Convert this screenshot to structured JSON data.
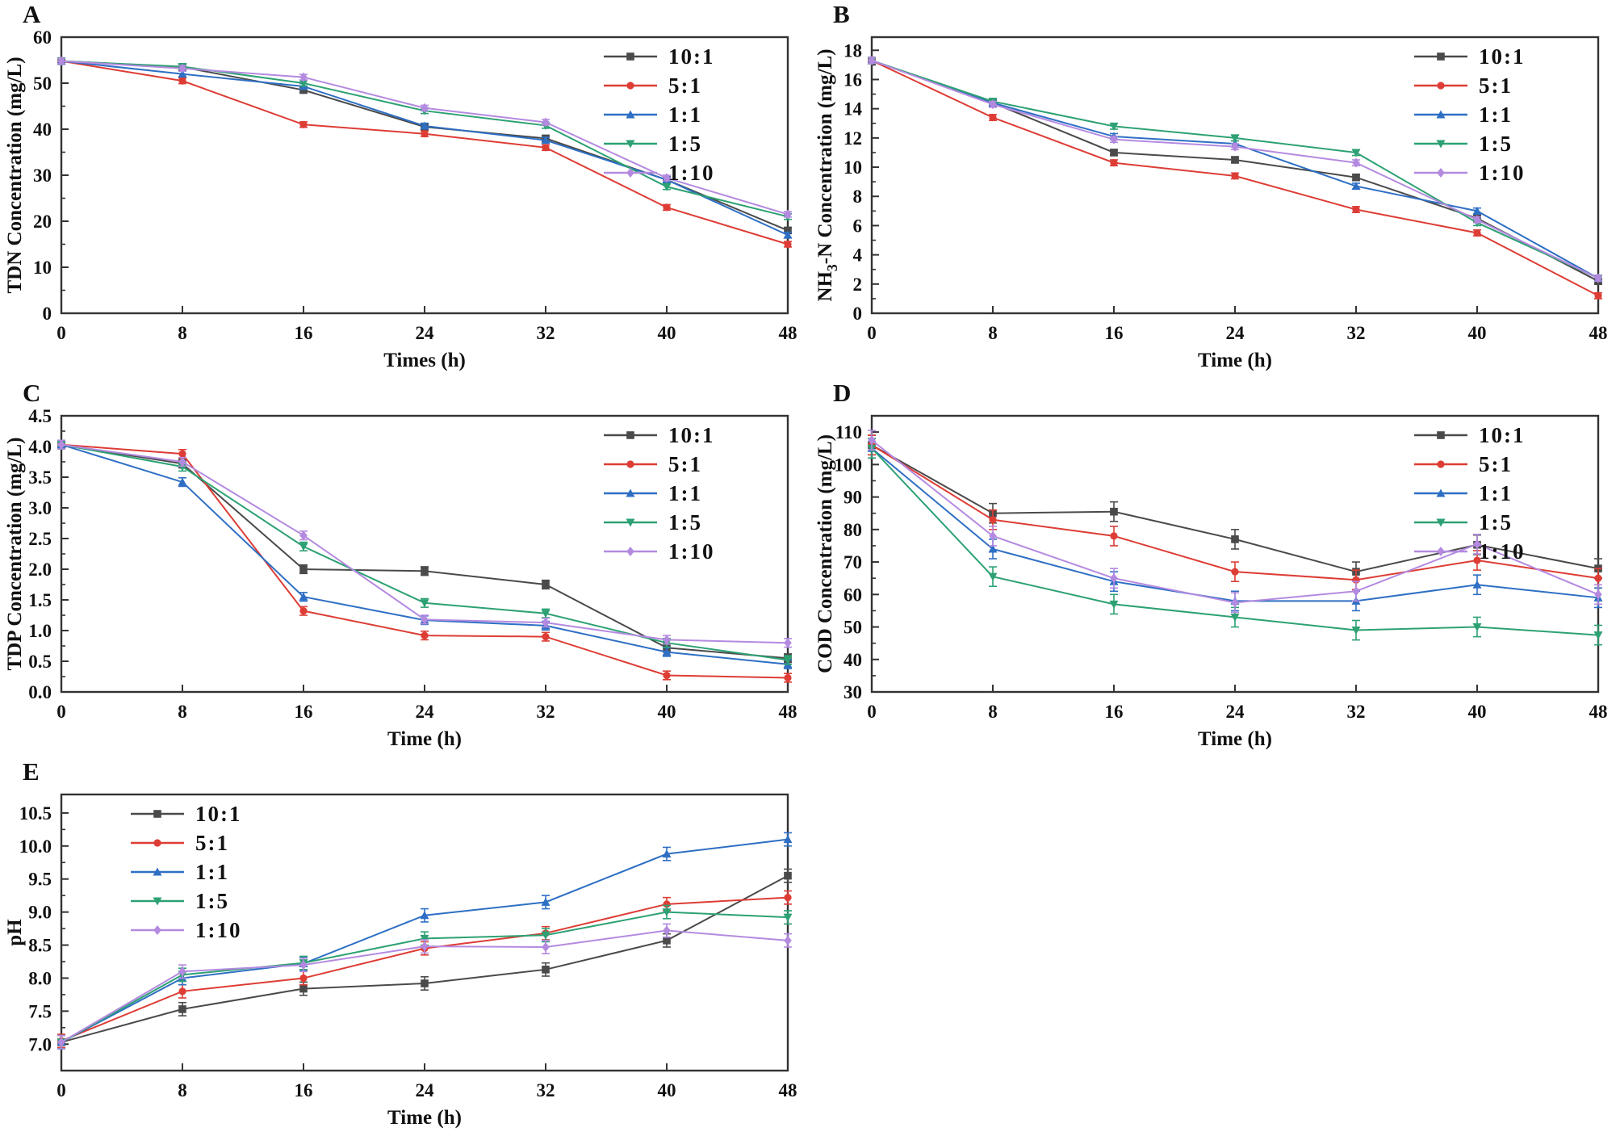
{
  "figure": {
    "description": "Five line charts (A-E) of water treatment ratios over time",
    "ratios": [
      "10:1",
      "5:1",
      "1:1",
      "1:5",
      "1:10"
    ]
  },
  "chart_data": [
    {
      "panel": "A",
      "type": "line",
      "xlabel": "Times (h)",
      "ylabel": "TDN Concentration (mg/L)",
      "ylabel_nh3_subscript": false,
      "x": [
        0,
        8,
        16,
        24,
        32,
        40,
        48
      ],
      "xlim": [
        0,
        48
      ],
      "xticks": [
        0,
        8,
        16,
        24,
        32,
        40,
        48
      ],
      "ylim": [
        0,
        60
      ],
      "yticks": [
        0,
        10,
        20,
        30,
        40,
        50,
        60
      ],
      "ytick_decimals": 0,
      "grid": false,
      "legend_position": "top-right",
      "error_bar": 0.6,
      "series": [
        {
          "name": "10:1",
          "color": "#4a4a4a",
          "marker": "square",
          "values": [
            54.8,
            53.5,
            48.5,
            40.5,
            38.0,
            29.0,
            18.0
          ]
        },
        {
          "name": "5:1",
          "color": "#dd3d35",
          "marker": "circle",
          "values": [
            54.8,
            50.5,
            41.0,
            39.0,
            36.0,
            23.0,
            15.0
          ]
        },
        {
          "name": "1:1",
          "color": "#2e6fc4",
          "marker": "triangle-up",
          "values": [
            54.8,
            52.0,
            49.3,
            40.7,
            37.6,
            29.0,
            17.0
          ]
        },
        {
          "name": "1:5",
          "color": "#2da173",
          "marker": "triangle-down",
          "values": [
            54.8,
            53.6,
            50.0,
            44.0,
            40.8,
            27.5,
            21.0
          ]
        },
        {
          "name": "1:10",
          "color": "#b48ae0",
          "marker": "diamond",
          "values": [
            54.8,
            53.2,
            51.3,
            44.6,
            41.5,
            29.4,
            21.5
          ]
        }
      ]
    },
    {
      "panel": "B",
      "type": "line",
      "xlabel": "Time (h)",
      "ylabel": "NH3-N Concentration (mg/L)",
      "ylabel_nh3_subscript": true,
      "x": [
        0,
        8,
        16,
        24,
        32,
        40,
        48
      ],
      "xlim": [
        0,
        48
      ],
      "xticks": [
        0,
        8,
        16,
        24,
        32,
        40,
        48
      ],
      "ylim": [
        0,
        18.9
      ],
      "yticks": [
        0,
        2,
        4,
        6,
        8,
        10,
        12,
        14,
        16,
        18
      ],
      "ytick_decimals": 0,
      "grid": false,
      "legend_position": "top-right",
      "error_bar": 0.2,
      "series": [
        {
          "name": "10:1",
          "color": "#4a4a4a",
          "marker": "square",
          "values": [
            17.3,
            14.4,
            11.0,
            10.5,
            9.3,
            6.5,
            2.2
          ]
        },
        {
          "name": "5:1",
          "color": "#dd3d35",
          "marker": "circle",
          "values": [
            17.3,
            13.4,
            10.3,
            9.4,
            7.1,
            5.5,
            1.2
          ]
        },
        {
          "name": "1:1",
          "color": "#2e6fc4",
          "marker": "triangle-up",
          "values": [
            17.3,
            14.4,
            12.1,
            11.6,
            8.7,
            7.0,
            2.4
          ]
        },
        {
          "name": "1:5",
          "color": "#2da173",
          "marker": "triangle-down",
          "values": [
            17.3,
            14.5,
            12.8,
            12.0,
            11.0,
            6.2,
            2.4
          ]
        },
        {
          "name": "1:10",
          "color": "#b48ae0",
          "marker": "diamond",
          "values": [
            17.3,
            14.3,
            11.9,
            11.4,
            10.3,
            6.4,
            2.4
          ]
        }
      ]
    },
    {
      "panel": "C",
      "type": "line",
      "xlabel": "Time (h)",
      "ylabel": "TDP Concentration (mg/L)",
      "ylabel_nh3_subscript": false,
      "x": [
        0,
        8,
        16,
        24,
        32,
        40,
        48
      ],
      "xlim": [
        0,
        48
      ],
      "xticks": [
        0,
        8,
        16,
        24,
        32,
        40,
        48
      ],
      "ylim": [
        0,
        4.5
      ],
      "yticks": [
        0.0,
        0.5,
        1.0,
        1.5,
        2.0,
        2.5,
        3.0,
        3.5,
        4.0,
        4.5
      ],
      "ytick_decimals": 1,
      "grid": false,
      "legend_position": "top-right",
      "error_bar": 0.07,
      "series": [
        {
          "name": "10:1",
          "color": "#4a4a4a",
          "marker": "square",
          "values": [
            4.03,
            3.72,
            2.0,
            1.97,
            1.75,
            0.72,
            0.55
          ]
        },
        {
          "name": "5:1",
          "color": "#dd3d35",
          "marker": "circle",
          "values": [
            4.03,
            3.88,
            1.32,
            0.92,
            0.9,
            0.27,
            0.23
          ]
        },
        {
          "name": "1:1",
          "color": "#2e6fc4",
          "marker": "triangle-up",
          "values": [
            4.03,
            3.42,
            1.55,
            1.17,
            1.08,
            0.65,
            0.45
          ]
        },
        {
          "name": "1:5",
          "color": "#2da173",
          "marker": "triangle-down",
          "values": [
            4.03,
            3.67,
            2.37,
            1.45,
            1.28,
            0.8,
            0.52
          ]
        },
        {
          "name": "1:10",
          "color": "#b48ae0",
          "marker": "diamond",
          "values": [
            4.03,
            3.75,
            2.55,
            1.18,
            1.13,
            0.85,
            0.8
          ]
        }
      ]
    },
    {
      "panel": "D",
      "type": "line",
      "xlabel": "Time (h)",
      "ylabel": "COD Concentration (mg/L)",
      "ylabel_nh3_subscript": false,
      "x": [
        0,
        8,
        16,
        24,
        32,
        40,
        48
      ],
      "xlim": [
        0,
        48
      ],
      "xticks": [
        0,
        8,
        16,
        24,
        32,
        40,
        48
      ],
      "ylim": [
        30,
        115
      ],
      "yticks": [
        30,
        40,
        50,
        60,
        70,
        80,
        90,
        100,
        110
      ],
      "ytick_decimals": 0,
      "grid": false,
      "legend_position": "top-right",
      "error_bar": 3.0,
      "series": [
        {
          "name": "10:1",
          "color": "#4a4a4a",
          "marker": "square",
          "values": [
            106.0,
            85.0,
            85.5,
            77.0,
            67.0,
            75.3,
            68.0
          ]
        },
        {
          "name": "5:1",
          "color": "#dd3d35",
          "marker": "circle",
          "values": [
            106.0,
            83.0,
            78.0,
            67.0,
            64.5,
            70.5,
            65.0
          ]
        },
        {
          "name": "1:1",
          "color": "#2e6fc4",
          "marker": "triangle-up",
          "values": [
            105.0,
            74.0,
            64.0,
            58.0,
            58.0,
            63.0,
            59.0
          ]
        },
        {
          "name": "1:5",
          "color": "#2da173",
          "marker": "triangle-down",
          "values": [
            105.0,
            65.5,
            57.0,
            53.0,
            49.0,
            50.0,
            47.5
          ]
        },
        {
          "name": "1:10",
          "color": "#b48ae0",
          "marker": "diamond",
          "values": [
            107.5,
            78.0,
            65.0,
            57.5,
            61.0,
            75.5,
            60.0
          ]
        }
      ]
    },
    {
      "panel": "E",
      "type": "line",
      "xlabel": "Time (h)",
      "ylabel": "pH",
      "ylabel_nh3_subscript": false,
      "x": [
        0,
        8,
        16,
        24,
        32,
        40,
        48
      ],
      "xlim": [
        0,
        48
      ],
      "xticks": [
        0,
        8,
        16,
        24,
        32,
        40,
        48
      ],
      "ylim": [
        6.6,
        10.78
      ],
      "yticks": [
        7.0,
        7.5,
        8.0,
        8.5,
        9.0,
        9.5,
        10.0,
        10.5
      ],
      "ytick_decimals": 1,
      "grid": false,
      "legend_position": "top-left",
      "error_bar": 0.1,
      "series": [
        {
          "name": "10:1",
          "color": "#4a4a4a",
          "marker": "square",
          "values": [
            7.03,
            7.53,
            7.84,
            7.92,
            8.13,
            8.57,
            9.55
          ]
        },
        {
          "name": "5:1",
          "color": "#dd3d35",
          "marker": "circle",
          "values": [
            7.05,
            7.8,
            8.0,
            8.45,
            8.68,
            9.12,
            9.22
          ]
        },
        {
          "name": "1:1",
          "color": "#2e6fc4",
          "marker": "triangle-up",
          "values": [
            7.03,
            8.0,
            8.22,
            8.95,
            9.15,
            9.88,
            10.1
          ]
        },
        {
          "name": "1:5",
          "color": "#2da173",
          "marker": "triangle-down",
          "values": [
            7.03,
            8.05,
            8.23,
            8.6,
            8.65,
            9.0,
            8.92
          ]
        },
        {
          "name": "1:10",
          "color": "#b48ae0",
          "marker": "diamond",
          "values": [
            7.03,
            8.1,
            8.2,
            8.48,
            8.47,
            8.72,
            8.57
          ]
        }
      ]
    }
  ]
}
